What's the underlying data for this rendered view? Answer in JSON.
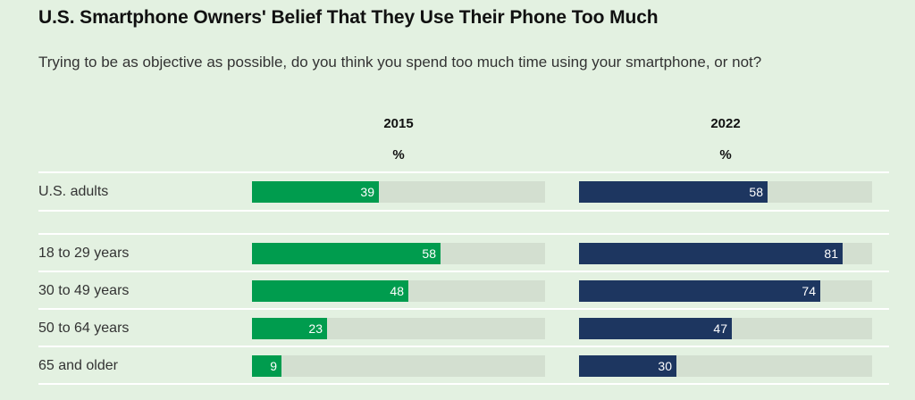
{
  "colors": {
    "background": "#e3f1e1",
    "track": "#d3dfd0",
    "series_2015": "#009c4e",
    "series_2022": "#1d3660"
  },
  "chart_data": {
    "type": "bar",
    "orientation": "horizontal",
    "title": "U.S. Smartphone Owners' Belief That They Use Their Phone Too Much",
    "subtitle": "Trying to be as objective as possible, do you think you spend too much time using your smartphone, or not?",
    "unit": "%",
    "xlim": [
      0,
      90
    ],
    "categories": [
      "U.S. adults",
      "18 to 29 years",
      "30 to 49 years",
      "50 to 64 years",
      "65 and older"
    ],
    "series": [
      {
        "name": "2015",
        "values": [
          39,
          58,
          48,
          23,
          9
        ]
      },
      {
        "name": "2022",
        "values": [
          58,
          81,
          74,
          47,
          30
        ]
      }
    ]
  }
}
